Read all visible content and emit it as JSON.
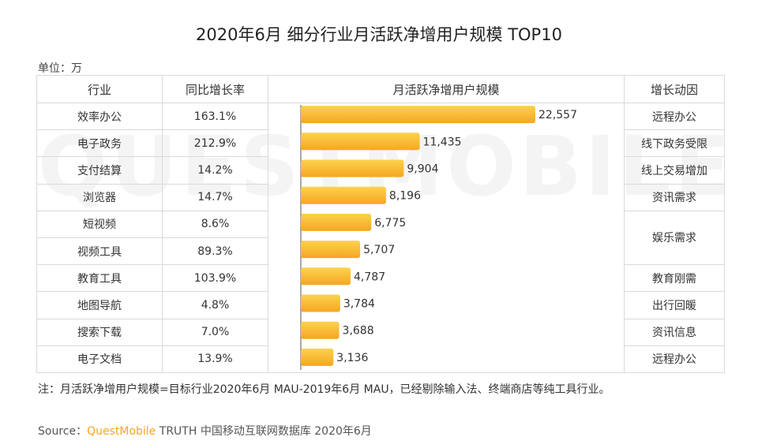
{
  "title": "2020年6月 细分行业月活跃净增用户规模 TOP10",
  "unit": "单位：万",
  "watermark": "QUESTMOBILE",
  "headers": {
    "industry": "行业",
    "growth": "同比增长率",
    "mau": "月活跃净增用户规模",
    "driver": "增长动因"
  },
  "colors": {
    "bar_start": "#fdd24d",
    "bar_end": "#f5a623",
    "border": "#d9d9d9"
  },
  "chart_data": {
    "type": "bar",
    "orientation": "horizontal",
    "categories": [
      "效率办公",
      "电子政务",
      "支付结算",
      "浏览器",
      "短视频",
      "视频工具",
      "教育工具",
      "地图导航",
      "搜索下载",
      "电子文档"
    ],
    "values": [
      22557,
      11435,
      9904,
      8196,
      6775,
      5707,
      4787,
      3784,
      3688,
      3136
    ],
    "value_labels": [
      "22,557",
      "11,435",
      "9,904",
      "8,196",
      "6,775",
      "5,707",
      "4,787",
      "3,784",
      "3,688",
      "3,136"
    ],
    "growth_rates": [
      "163.1%",
      "212.9%",
      "14.2%",
      "14.7%",
      "8.6%",
      "89.3%",
      "103.9%",
      "4.8%",
      "7.0%",
      "13.9%"
    ],
    "drivers": [
      "远程办公",
      "线下政务受限",
      "线上交易增加",
      "资讯需求",
      "娱乐需求",
      "",
      "教育刚需",
      "出行回暖",
      "资讯信息",
      "远程办公"
    ],
    "driver_spans": [
      1,
      1,
      1,
      1,
      2,
      0,
      1,
      1,
      1,
      1
    ],
    "title": "2020年6月 细分行业月活跃净增用户规模 TOP10",
    "xlabel": "",
    "ylabel": "",
    "xlim": [
      0,
      25000
    ],
    "unit": "万",
    "grid": false,
    "legend": "none"
  },
  "note": "注：月活跃净增用户规模=目标行业2020年6月 MAU-2019年6月 MAU，已经剔除输入法、终端商店等纯工具行业。",
  "source": {
    "prefix": "Source：",
    "brand": "QuestMobile",
    "rest": " TRUTH 中国移动互联网数据库 2020年6月"
  }
}
